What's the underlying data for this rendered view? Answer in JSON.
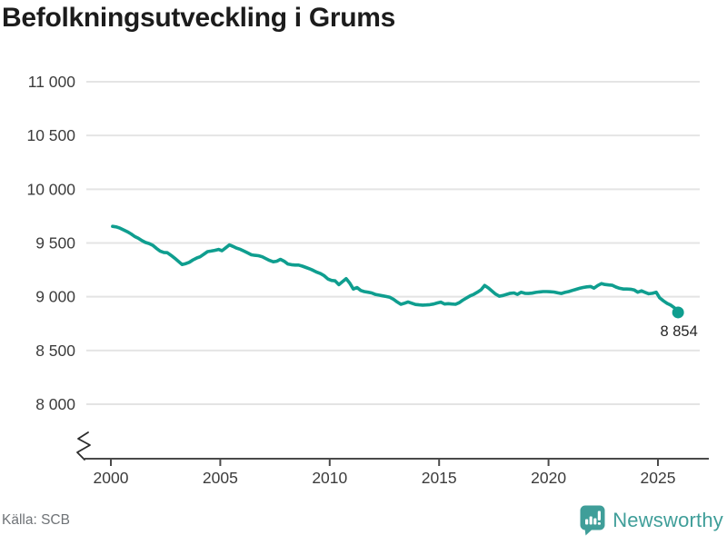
{
  "title": "Befolkningsutveckling i Grums",
  "footer": {
    "source": "Källa: SCB",
    "brand": "Newsworthy"
  },
  "colors": {
    "line": "#0f9e8f",
    "grid": "#e4e4e4",
    "axis": "#4a4a4a",
    "tick_text": "#3c3c3c",
    "title_text": "#1c1c1c",
    "end_label_text": "#242424",
    "source_text": "#6f7377",
    "brand_teal": "#3f9e99"
  },
  "chart_data": {
    "type": "line",
    "title": "Befolkningsutveckling i Grums",
    "xlabel": "",
    "ylabel": "",
    "grid": true,
    "axis_break": true,
    "ylim": [
      8000,
      11000
    ],
    "xlim": [
      1999.5,
      2026.5
    ],
    "x_ticks": [
      2000,
      2005,
      2010,
      2015,
      2020,
      2025
    ],
    "x_tick_labels": [
      "2000",
      "2005",
      "2010",
      "2015",
      "2020",
      "2025"
    ],
    "y_ticks": [
      11000,
      10500,
      10000,
      9500,
      9000,
      8500,
      8000
    ],
    "y_tick_labels": [
      "11 000",
      "10 500",
      "10 000",
      "9 500",
      "9 000",
      "8 500",
      "8 000"
    ],
    "end_point": {
      "x": 2025.92,
      "value": 8854,
      "label": "8 854"
    },
    "series": [
      {
        "points": [
          [
            2000.08,
            9655
          ],
          [
            2000.25,
            9650
          ],
          [
            2000.42,
            9638
          ],
          [
            2000.58,
            9622
          ],
          [
            2000.75,
            9605
          ],
          [
            2000.92,
            9585
          ],
          [
            2001.08,
            9562
          ],
          [
            2001.25,
            9545
          ],
          [
            2001.42,
            9522
          ],
          [
            2001.58,
            9505
          ],
          [
            2001.75,
            9495
          ],
          [
            2001.92,
            9478
          ],
          [
            2002.08,
            9450
          ],
          [
            2002.25,
            9425
          ],
          [
            2002.42,
            9412
          ],
          [
            2002.58,
            9410
          ],
          [
            2002.75,
            9385
          ],
          [
            2002.92,
            9358
          ],
          [
            2003.08,
            9330
          ],
          [
            2003.25,
            9300
          ],
          [
            2003.42,
            9308
          ],
          [
            2003.58,
            9320
          ],
          [
            2003.75,
            9342
          ],
          [
            2003.92,
            9360
          ],
          [
            2004.08,
            9372
          ],
          [
            2004.25,
            9395
          ],
          [
            2004.42,
            9420
          ],
          [
            2004.58,
            9425
          ],
          [
            2004.75,
            9432
          ],
          [
            2004.92,
            9440
          ],
          [
            2005.08,
            9428
          ],
          [
            2005.25,
            9455
          ],
          [
            2005.42,
            9482
          ],
          [
            2005.58,
            9468
          ],
          [
            2005.75,
            9452
          ],
          [
            2005.92,
            9440
          ],
          [
            2006.08,
            9425
          ],
          [
            2006.25,
            9408
          ],
          [
            2006.42,
            9390
          ],
          [
            2006.58,
            9385
          ],
          [
            2006.75,
            9382
          ],
          [
            2006.92,
            9372
          ],
          [
            2007.08,
            9355
          ],
          [
            2007.25,
            9338
          ],
          [
            2007.42,
            9325
          ],
          [
            2007.58,
            9330
          ],
          [
            2007.75,
            9348
          ],
          [
            2007.92,
            9330
          ],
          [
            2008.08,
            9305
          ],
          [
            2008.25,
            9298
          ],
          [
            2008.42,
            9295
          ],
          [
            2008.58,
            9295
          ],
          [
            2008.75,
            9285
          ],
          [
            2008.92,
            9272
          ],
          [
            2009.08,
            9260
          ],
          [
            2009.25,
            9245
          ],
          [
            2009.42,
            9228
          ],
          [
            2009.58,
            9215
          ],
          [
            2009.75,
            9195
          ],
          [
            2009.92,
            9165
          ],
          [
            2010.08,
            9152
          ],
          [
            2010.25,
            9148
          ],
          [
            2010.42,
            9112
          ],
          [
            2010.58,
            9140
          ],
          [
            2010.75,
            9168
          ],
          [
            2010.92,
            9125
          ],
          [
            2011.08,
            9072
          ],
          [
            2011.25,
            9085
          ],
          [
            2011.42,
            9058
          ],
          [
            2011.58,
            9048
          ],
          [
            2011.75,
            9042
          ],
          [
            2011.92,
            9035
          ],
          [
            2012.08,
            9022
          ],
          [
            2012.25,
            9015
          ],
          [
            2012.42,
            9008
          ],
          [
            2012.58,
            9002
          ],
          [
            2012.75,
            8995
          ],
          [
            2012.92,
            8975
          ],
          [
            2013.08,
            8952
          ],
          [
            2013.25,
            8930
          ],
          [
            2013.42,
            8940
          ],
          [
            2013.58,
            8952
          ],
          [
            2013.75,
            8940
          ],
          [
            2013.92,
            8928
          ],
          [
            2014.08,
            8925
          ],
          [
            2014.25,
            8922
          ],
          [
            2014.42,
            8924
          ],
          [
            2014.58,
            8926
          ],
          [
            2014.75,
            8932
          ],
          [
            2014.92,
            8942
          ],
          [
            2015.08,
            8950
          ],
          [
            2015.25,
            8932
          ],
          [
            2015.42,
            8936
          ],
          [
            2015.58,
            8932
          ],
          [
            2015.75,
            8930
          ],
          [
            2015.92,
            8945
          ],
          [
            2016.08,
            8968
          ],
          [
            2016.25,
            8988
          ],
          [
            2016.42,
            9008
          ],
          [
            2016.58,
            9022
          ],
          [
            2016.75,
            9042
          ],
          [
            2016.92,
            9065
          ],
          [
            2017.08,
            9105
          ],
          [
            2017.25,
            9082
          ],
          [
            2017.42,
            9052
          ],
          [
            2017.58,
            9025
          ],
          [
            2017.75,
            9005
          ],
          [
            2017.92,
            9012
          ],
          [
            2018.08,
            9022
          ],
          [
            2018.25,
            9032
          ],
          [
            2018.42,
            9035
          ],
          [
            2018.58,
            9022
          ],
          [
            2018.75,
            9042
          ],
          [
            2018.92,
            9032
          ],
          [
            2019.08,
            9030
          ],
          [
            2019.25,
            9034
          ],
          [
            2019.42,
            9040
          ],
          [
            2019.58,
            9045
          ],
          [
            2019.75,
            9048
          ],
          [
            2019.92,
            9048
          ],
          [
            2020.08,
            9046
          ],
          [
            2020.25,
            9044
          ],
          [
            2020.42,
            9036
          ],
          [
            2020.58,
            9030
          ],
          [
            2020.75,
            9040
          ],
          [
            2020.92,
            9048
          ],
          [
            2021.08,
            9058
          ],
          [
            2021.25,
            9068
          ],
          [
            2021.42,
            9078
          ],
          [
            2021.58,
            9086
          ],
          [
            2021.75,
            9092
          ],
          [
            2021.92,
            9095
          ],
          [
            2022.08,
            9080
          ],
          [
            2022.25,
            9105
          ],
          [
            2022.42,
            9122
          ],
          [
            2022.58,
            9114
          ],
          [
            2022.75,
            9110
          ],
          [
            2022.92,
            9106
          ],
          [
            2023.08,
            9090
          ],
          [
            2023.25,
            9078
          ],
          [
            2023.42,
            9072
          ],
          [
            2023.58,
            9072
          ],
          [
            2023.75,
            9070
          ],
          [
            2023.92,
            9062
          ],
          [
            2024.08,
            9042
          ],
          [
            2024.25,
            9055
          ],
          [
            2024.42,
            9040
          ],
          [
            2024.58,
            9028
          ],
          [
            2024.75,
            9032
          ],
          [
            2024.92,
            9042
          ],
          [
            2025.08,
            8990
          ],
          [
            2025.25,
            8962
          ],
          [
            2025.42,
            8938
          ],
          [
            2025.58,
            8922
          ],
          [
            2025.75,
            8898
          ],
          [
            2025.92,
            8854
          ]
        ]
      }
    ]
  }
}
